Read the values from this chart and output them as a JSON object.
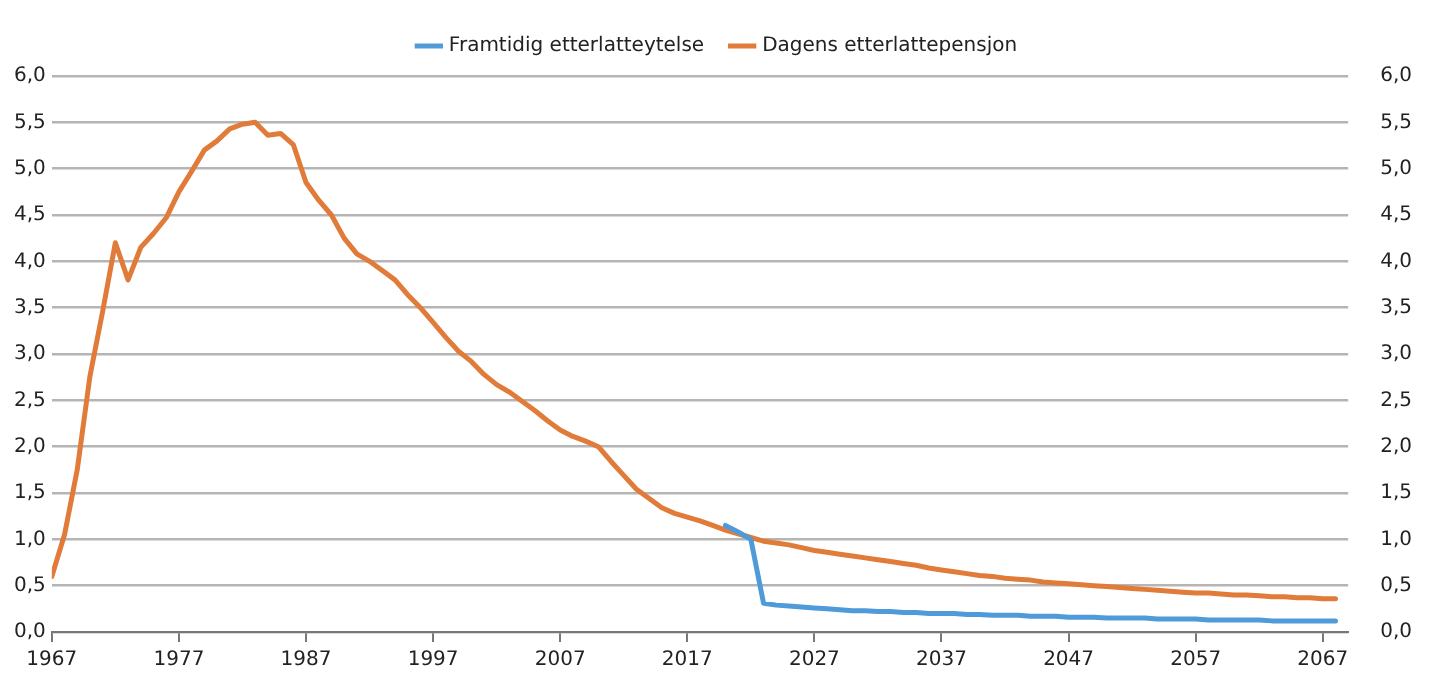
{
  "chart_data": {
    "type": "line",
    "legend": "top",
    "grid": "y",
    "marker": "none",
    "line_style": "solid",
    "x": [
      1967,
      1968,
      1969,
      1970,
      1971,
      1972,
      1973,
      1974,
      1975,
      1976,
      1977,
      1978,
      1979,
      1980,
      1981,
      1982,
      1983,
      1984,
      1985,
      1986,
      1987,
      1988,
      1989,
      1990,
      1991,
      1992,
      1993,
      1994,
      1995,
      1996,
      1997,
      1998,
      1999,
      2000,
      2001,
      2002,
      2003,
      2004,
      2005,
      2006,
      2007,
      2008,
      2009,
      2010,
      2011,
      2012,
      2013,
      2014,
      2015,
      2016,
      2017,
      2018,
      2019,
      2020,
      2021,
      2022,
      2023,
      2024,
      2025,
      2026,
      2027,
      2028,
      2029,
      2030,
      2031,
      2032,
      2033,
      2034,
      2035,
      2036,
      2037,
      2038,
      2039,
      2040,
      2041,
      2042,
      2043,
      2044,
      2045,
      2046,
      2047,
      2048,
      2049,
      2050,
      2051,
      2052,
      2053,
      2054,
      2055,
      2056,
      2057,
      2058,
      2059,
      2060,
      2061,
      2062,
      2063,
      2064,
      2065,
      2066,
      2067,
      2068
    ],
    "xlim": [
      1967,
      2069
    ],
    "xticks": [
      1967,
      1977,
      1987,
      1997,
      2007,
      2017,
      2027,
      2037,
      2047,
      2057,
      2067
    ],
    "ylim": [
      0,
      6
    ],
    "yticks": [
      {
        "value": 0,
        "label": "0,0"
      },
      {
        "value": 0.5,
        "label": "0,5"
      },
      {
        "value": 1,
        "label": "1,0"
      },
      {
        "value": 1.5,
        "label": "1,5"
      },
      {
        "value": 2,
        "label": "2,0"
      },
      {
        "value": 2.5,
        "label": "2,5"
      },
      {
        "value": 3,
        "label": "3,0"
      },
      {
        "value": 3.5,
        "label": "3,5"
      },
      {
        "value": 4,
        "label": "4,0"
      },
      {
        "value": 4.5,
        "label": "4,5"
      },
      {
        "value": 5,
        "label": "5,0"
      },
      {
        "value": 5.5,
        "label": "5,5"
      },
      {
        "value": 6,
        "label": "6,0"
      }
    ],
    "y2lim": [
      0,
      6
    ],
    "y2ticks": [
      {
        "value": 0,
        "label": "0,0"
      },
      {
        "value": 0.5,
        "label": "0,5"
      },
      {
        "value": 1,
        "label": "1,0"
      },
      {
        "value": 1.5,
        "label": "1,5"
      },
      {
        "value": 2,
        "label": "2,0"
      },
      {
        "value": 2.5,
        "label": "2,5"
      },
      {
        "value": 3,
        "label": "3,0"
      },
      {
        "value": 3.5,
        "label": "3,5"
      },
      {
        "value": 4,
        "label": "4,0"
      },
      {
        "value": 4.5,
        "label": "4,5"
      },
      {
        "value": 5,
        "label": "5,0"
      },
      {
        "value": 5.5,
        "label": "5,5"
      },
      {
        "value": 6,
        "label": "6,0"
      }
    ],
    "series": [
      {
        "name": "Framtidig etterlatteytelse",
        "color": "#4f9bd9",
        "x": [
          2020,
          2021,
          2022,
          2023,
          2024,
          2025,
          2026,
          2027,
          2028,
          2029,
          2030,
          2031,
          2032,
          2033,
          2034,
          2035,
          2036,
          2037,
          2038,
          2039,
          2040,
          2041,
          2042,
          2043,
          2044,
          2045,
          2046,
          2047,
          2048,
          2049,
          2050,
          2051,
          2052,
          2053,
          2054,
          2055,
          2056,
          2057,
          2058,
          2059,
          2060,
          2061,
          2062,
          2063,
          2064,
          2065,
          2066,
          2067,
          2068
        ],
        "values": [
          1.15,
          1.08,
          1.0,
          0.31,
          0.29,
          0.28,
          0.27,
          0.26,
          0.25,
          0.24,
          0.23,
          0.23,
          0.22,
          0.22,
          0.21,
          0.21,
          0.2,
          0.2,
          0.2,
          0.19,
          0.19,
          0.18,
          0.18,
          0.18,
          0.17,
          0.17,
          0.17,
          0.16,
          0.16,
          0.16,
          0.15,
          0.15,
          0.15,
          0.15,
          0.14,
          0.14,
          0.14,
          0.14,
          0.13,
          0.13,
          0.13,
          0.13,
          0.13,
          0.12,
          0.12,
          0.12,
          0.12,
          0.12,
          0.12
        ]
      },
      {
        "name": "Dagens etterlattepensjon",
        "color": "#e07b39",
        "values": [
          0.6,
          1.05,
          1.75,
          2.76,
          3.46,
          4.2,
          3.8,
          4.15,
          4.3,
          4.47,
          4.75,
          4.97,
          5.2,
          5.3,
          5.43,
          5.48,
          5.5,
          5.36,
          5.38,
          5.26,
          4.85,
          4.66,
          4.5,
          4.25,
          4.08,
          4.0,
          3.9,
          3.8,
          3.64,
          3.5,
          3.34,
          3.18,
          3.03,
          2.92,
          2.78,
          2.67,
          2.59,
          2.49,
          2.39,
          2.28,
          2.18,
          2.11,
          2.06,
          2.0,
          1.84,
          1.69,
          1.54,
          1.44,
          1.34,
          1.28,
          1.24,
          1.2,
          1.15,
          1.1,
          1.06,
          1.02,
          0.98,
          0.96,
          0.94,
          0.91,
          0.88,
          0.86,
          0.84,
          0.82,
          0.8,
          0.78,
          0.76,
          0.74,
          0.72,
          0.69,
          0.67,
          0.65,
          0.63,
          0.61,
          0.6,
          0.58,
          0.57,
          0.56,
          0.54,
          0.53,
          0.52,
          0.51,
          0.5,
          0.49,
          0.48,
          0.47,
          0.46,
          0.45,
          0.44,
          0.43,
          0.42,
          0.42,
          0.41,
          0.4,
          0.4,
          0.39,
          0.38,
          0.38,
          0.37,
          0.37,
          0.36,
          0.36
        ]
      }
    ]
  }
}
